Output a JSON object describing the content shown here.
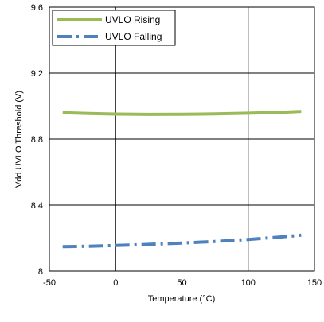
{
  "chart_data": {
    "type": "line",
    "xlabel": "Temperature (°C)",
    "ylabel": "Vdd UVLO Threshold (V)",
    "xlim": [
      -50,
      150
    ],
    "ylim": [
      8,
      9.6
    ],
    "x_ticks": [
      "-50",
      "0",
      "50",
      "100",
      "150"
    ],
    "y_ticks": [
      "8",
      "8.4",
      "8.8",
      "9.2",
      "9.6"
    ],
    "grid": true,
    "legend_position": "top-left",
    "series": [
      {
        "name": "UVLO Rising",
        "style": "solid",
        "color": "#9bbb59",
        "x": [
          -40,
          -20,
          0,
          25,
          50,
          75,
          100,
          125,
          140
        ],
        "y": [
          8.96,
          8.955,
          8.952,
          8.95,
          8.951,
          8.953,
          8.957,
          8.963,
          8.968
        ]
      },
      {
        "name": "UVLO Falling",
        "style": "dashdot",
        "color": "#4f81bd",
        "x": [
          -40,
          -20,
          0,
          25,
          50,
          75,
          100,
          125,
          140
        ],
        "y": [
          8.148,
          8.151,
          8.155,
          8.162,
          8.17,
          8.18,
          8.192,
          8.207,
          8.218
        ]
      }
    ]
  }
}
